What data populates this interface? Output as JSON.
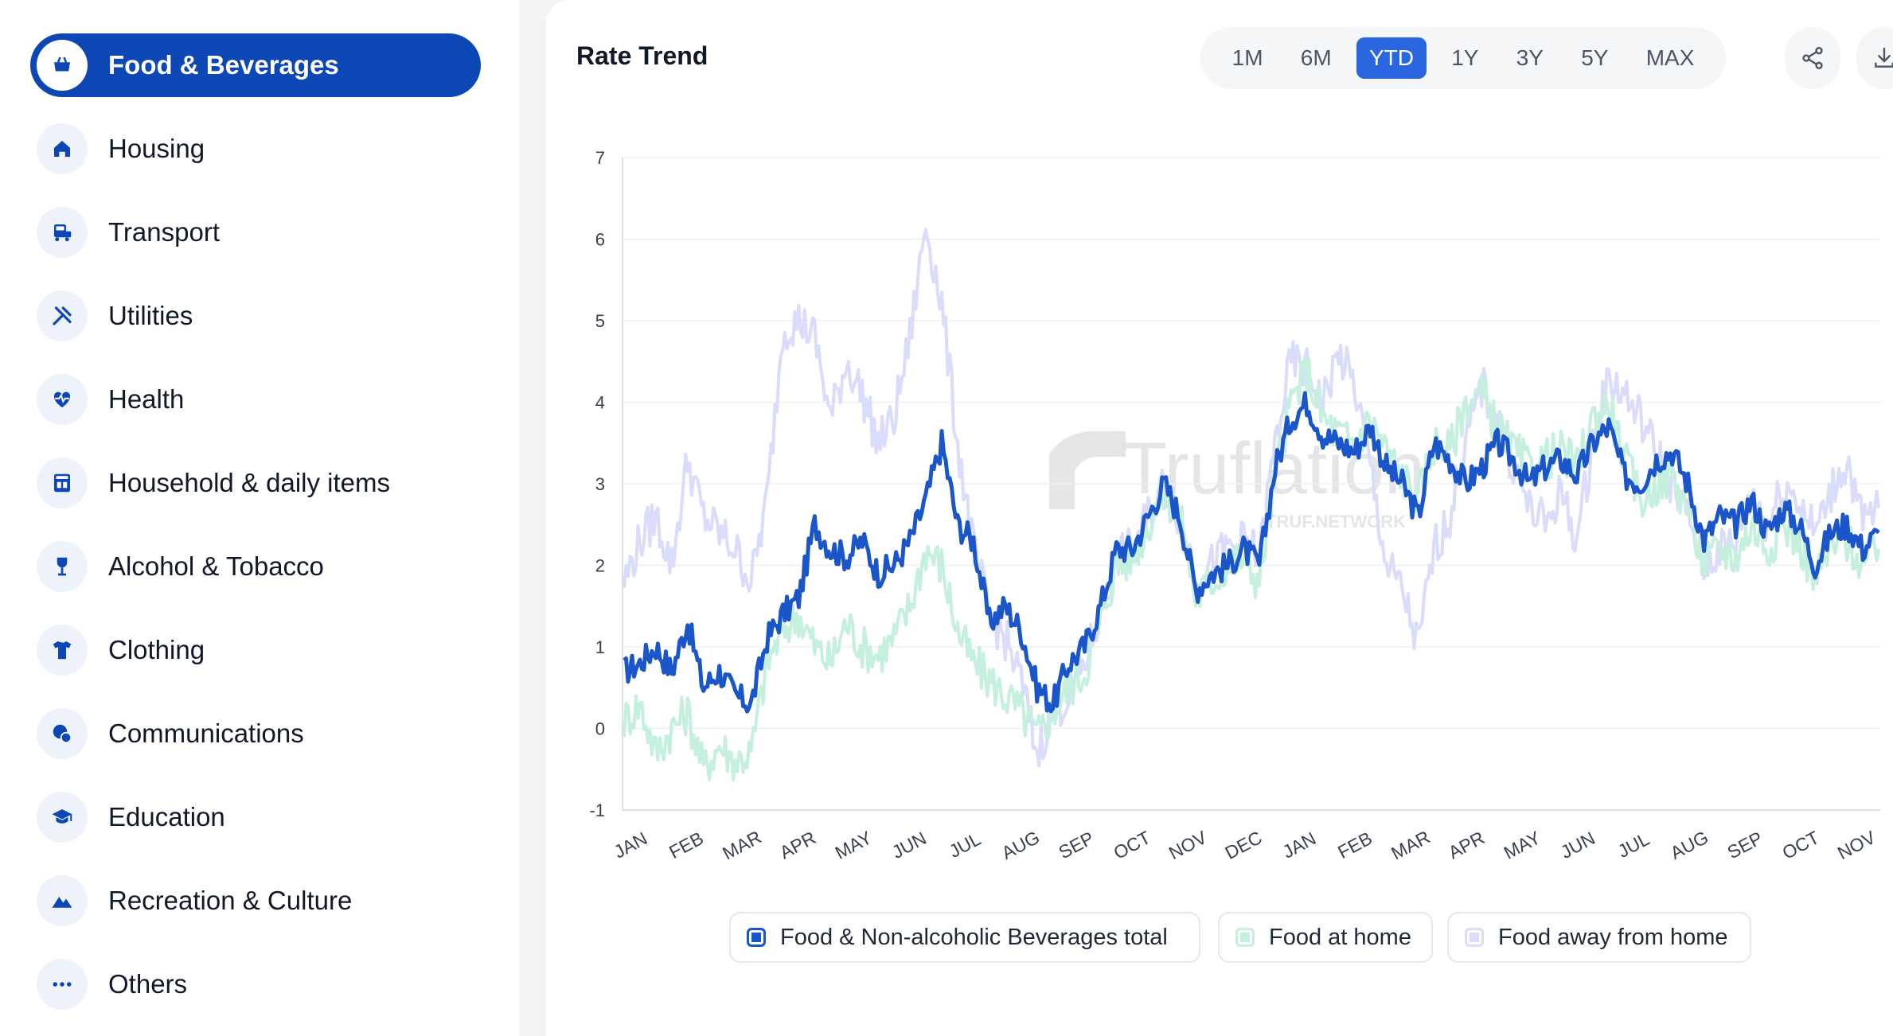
{
  "sidebar": {
    "items": [
      {
        "label": "Food & Beverages",
        "icon": "cart-icon",
        "active": true
      },
      {
        "label": "Housing",
        "icon": "house-icon",
        "active": false
      },
      {
        "label": "Transport",
        "icon": "transport-icon",
        "active": false
      },
      {
        "label": "Utilities",
        "icon": "tools-icon",
        "active": false
      },
      {
        "label": "Health",
        "icon": "heart-pulse-icon",
        "active": false
      },
      {
        "label": "Household & daily items",
        "icon": "appliance-icon",
        "active": false
      },
      {
        "label": "Alcohol & Tobacco",
        "icon": "wine-glass-icon",
        "active": false
      },
      {
        "label": "Clothing",
        "icon": "tshirt-icon",
        "active": false
      },
      {
        "label": "Communications",
        "icon": "chat-icon",
        "active": false
      },
      {
        "label": "Education",
        "icon": "graduation-cap-icon",
        "active": false
      },
      {
        "label": "Recreation & Culture",
        "icon": "mountain-icon",
        "active": false
      },
      {
        "label": "Others",
        "icon": "more-dots-icon",
        "active": false
      }
    ]
  },
  "colors": {
    "accent": "#0d47b5",
    "series_total": "#1a56c9",
    "series_home": "#c4f0dd",
    "series_away": "#d9dcfb",
    "tab_active": "#2a66e0"
  },
  "range_tabs": {
    "items": [
      "1M",
      "6M",
      "YTD",
      "1Y",
      "3Y",
      "5Y",
      "MAX"
    ],
    "active": "YTD"
  },
  "actions": {
    "share": "share-icon",
    "download": "download-icon"
  },
  "watermark": {
    "logo": "Truflation",
    "sub": "TRUF.NETWORK"
  },
  "chart_data": {
    "type": "line",
    "title": "Rate Trend",
    "xlabel": "",
    "ylabel": "",
    "ylim": [
      -1,
      7
    ],
    "yticks": [
      -1,
      0,
      1,
      2,
      3,
      4,
      5,
      6,
      7
    ],
    "x_tick_labels": [
      "JAN",
      "FEB",
      "MAR",
      "APR",
      "MAY",
      "JUN",
      "JUL",
      "AUG",
      "SEP",
      "OCT",
      "NOV",
      "DEC",
      "JAN",
      "FEB",
      "MAR",
      "APR",
      "MAY",
      "JUN",
      "JUL",
      "AUG",
      "SEP",
      "OCT",
      "NOV"
    ],
    "legend_position": "bottom",
    "series": [
      {
        "name": "Food & Non-alcoholic Beverages total",
        "values": [
          0.7,
          0.8,
          1.0,
          0.7,
          1.3,
          0.5,
          0.7,
          0.4,
          0.3,
          1.1,
          1.4,
          1.6,
          2.5,
          2.2,
          2.1,
          2.3,
          1.9,
          2.0,
          2.3,
          2.8,
          3.5,
          2.5,
          2.3,
          1.3,
          1.5,
          1.2,
          0.5,
          0.3,
          0.8,
          1.0,
          1.5,
          2.2,
          2.2,
          2.6,
          3.0,
          2.6,
          1.7,
          1.9,
          2.0,
          2.2,
          2.0,
          3.2,
          3.8,
          4.0,
          3.6,
          3.5,
          3.4,
          3.7,
          3.2,
          3.0,
          2.6,
          3.5,
          3.3,
          3.0,
          3.2,
          3.5,
          3.3,
          3.0,
          3.2,
          3.3,
          3.1,
          3.5,
          3.7,
          3.1,
          3.0,
          3.3,
          3.4,
          3.0,
          2.3,
          2.6,
          2.5,
          2.8,
          2.4,
          2.7,
          2.5,
          2.0,
          2.4,
          2.5,
          2.2,
          2.4
        ]
      },
      {
        "name": "Food at home",
        "values": [
          0.1,
          0.3,
          -0.3,
          0.0,
          0.2,
          -0.5,
          -0.2,
          -0.4,
          -0.3,
          0.8,
          1.2,
          1.4,
          1.0,
          0.8,
          1.3,
          1.0,
          0.9,
          1.1,
          1.5,
          2.2,
          2.0,
          1.2,
          0.8,
          0.6,
          0.4,
          0.2,
          -0.1,
          0.2,
          0.5,
          0.7,
          1.3,
          2.0,
          2.1,
          2.5,
          2.9,
          2.6,
          1.6,
          1.8,
          2.0,
          2.1,
          1.8,
          3.1,
          4.0,
          4.4,
          3.8,
          3.6,
          3.5,
          3.8,
          3.4,
          3.1,
          2.8,
          3.5,
          3.4,
          4.0,
          4.1,
          3.7,
          3.4,
          3.2,
          3.3,
          3.4,
          3.2,
          3.8,
          4.0,
          3.3,
          2.8,
          3.0,
          3.1,
          2.7,
          2.0,
          2.2,
          2.1,
          2.5,
          2.2,
          2.5,
          2.3,
          1.8,
          2.2,
          2.3,
          2.0,
          2.2
        ]
      },
      {
        "name": "Food away from home",
        "values": [
          1.8,
          2.3,
          2.6,
          2.0,
          3.3,
          2.6,
          2.4,
          2.2,
          1.8,
          2.8,
          4.9,
          5.0,
          4.8,
          3.8,
          4.5,
          4.1,
          3.5,
          3.8,
          4.8,
          6.2,
          5.2,
          3.5,
          2.2,
          1.4,
          1.1,
          0.6,
          -0.3,
          0.2,
          0.4,
          0.8,
          1.4,
          2.1,
          2.2,
          2.6,
          3.0,
          2.6,
          1.9,
          2.0,
          2.2,
          2.3,
          2.1,
          3.5,
          4.5,
          4.4,
          4.0,
          4.6,
          4.2,
          3.2,
          2.0,
          1.7,
          1.0,
          2.2,
          2.6,
          3.5,
          4.2,
          3.8,
          3.2,
          2.7,
          2.5,
          2.9,
          2.3,
          3.5,
          4.3,
          4.1,
          3.8,
          3.4,
          3.0,
          2.6,
          2.0,
          2.2,
          2.3,
          2.9,
          2.5,
          3.0,
          2.8,
          2.4,
          2.9,
          3.3,
          2.5,
          2.7
        ]
      }
    ]
  }
}
